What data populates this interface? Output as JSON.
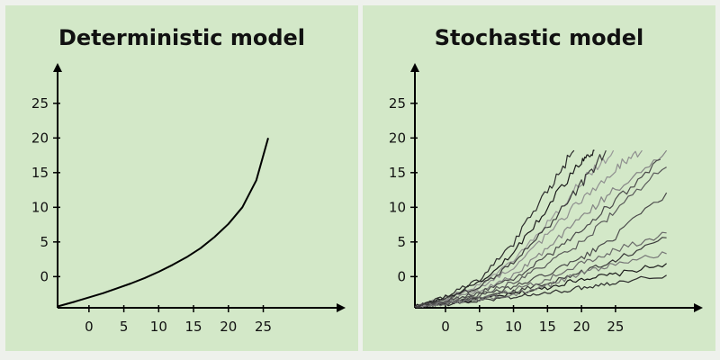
{
  "chart_data": [
    {
      "type": "line",
      "title": "Deterministic model",
      "xlabel": "",
      "ylabel": "",
      "x_ticks": [
        0,
        5,
        10,
        15,
        20,
        25
      ],
      "y_ticks": [
        0,
        5,
        10,
        15,
        20,
        25
      ],
      "xlim": [
        -4.5,
        35
      ],
      "ylim": [
        -4.5,
        29
      ],
      "grid": false,
      "series": [
        {
          "x": [
            -4.5,
            -2,
            0,
            2,
            4,
            6,
            8,
            10,
            12,
            14,
            16,
            18,
            20,
            22,
            24,
            25.7
          ],
          "y": [
            -4.3,
            -3.6,
            -3.0,
            -2.4,
            -1.7,
            -1.0,
            -0.2,
            0.7,
            1.7,
            2.8,
            4.1,
            5.7,
            7.6,
            10.0,
            13.9,
            20.0
          ]
        }
      ]
    },
    {
      "type": "line",
      "title": "Stochastic model",
      "xlabel": "",
      "ylabel": "",
      "x_ticks": [
        0,
        5,
        10,
        15,
        20,
        25
      ],
      "y_ticks": [
        0,
        5,
        10,
        15,
        20,
        25
      ],
      "xlim": [
        -4.5,
        36
      ],
      "ylim": [
        -4.5,
        29
      ],
      "grid": false,
      "series": [
        {
          "x": [
            -4.5,
            0,
            5,
            10,
            15,
            20,
            25,
            32.5
          ],
          "y": [
            -4.3,
            -3.9,
            -3.3,
            -2.5,
            -1.6,
            -0.3,
            0.3,
            1.9
          ]
        },
        {
          "x": [
            -4.5,
            0,
            5,
            10,
            15,
            20,
            25,
            32.5
          ],
          "y": [
            -4.3,
            -4.0,
            -3.5,
            -2.9,
            -2.4,
            -1.6,
            -0.8,
            0.2
          ]
        },
        {
          "x": [
            -4.5,
            0,
            5,
            10,
            15,
            20,
            25,
            32.5
          ],
          "y": [
            -4.3,
            -3.8,
            -3.2,
            -2.2,
            -0.9,
            0.6,
            2.5,
            5.6
          ]
        },
        {
          "x": [
            -4.5,
            0,
            5,
            10,
            15,
            20,
            25,
            32.5
          ],
          "y": [
            -4.3,
            -3.7,
            -2.8,
            -1.5,
            0.4,
            2.6,
            5.8,
            12.1
          ]
        },
        {
          "x": [
            -4.5,
            0,
            5,
            10,
            15,
            20,
            25,
            32.5
          ],
          "y": [
            -4.3,
            -3.6,
            -2.6,
            -0.8,
            1.8,
            4.9,
            9.6,
            15.8
          ]
        },
        {
          "x": [
            -4.5,
            0,
            5,
            10,
            15,
            20,
            25,
            32.5
          ],
          "y": [
            -4.3,
            -3.9,
            -3.1,
            -1.9,
            -0.4,
            1.9,
            3.8,
            6.3
          ]
        },
        {
          "x": [
            -4.5,
            0,
            5,
            10,
            15,
            20,
            25,
            32.5
          ],
          "y": [
            -4.3,
            -3.8,
            -3.3,
            -2.6,
            -1.3,
            0.5,
            1.8,
            3.3
          ]
        },
        {
          "x": [
            -4.5,
            0,
            5,
            10,
            15,
            20,
            25,
            32.5
          ],
          "y": [
            -4.3,
            -3.4,
            -2.1,
            0.2,
            4.0,
            8.5,
            12.6,
            18.2
          ]
        },
        {
          "x": [
            -4.5,
            0,
            5,
            10,
            15,
            20,
            25,
            28.9
          ],
          "y": [
            -4.3,
            -3.3,
            -1.6,
            1.4,
            6.0,
            11.2,
            15.6,
            18.2
          ]
        },
        {
          "x": [
            -4.5,
            0,
            5,
            10,
            15,
            20,
            24.7
          ],
          "y": [
            -4.3,
            -3.1,
            -1.2,
            2.5,
            7.8,
            13.6,
            18.2
          ]
        },
        {
          "x": [
            -4.5,
            0,
            5,
            10,
            15,
            20,
            21.9
          ],
          "y": [
            -4.3,
            -3.0,
            -0.8,
            3.5,
            9.9,
            17.0,
            18.2
          ]
        },
        {
          "x": [
            -4.5,
            0,
            5,
            10,
            15,
            18.9
          ],
          "y": [
            -4.3,
            -2.9,
            -0.4,
            4.8,
            12.4,
            18.2
          ]
        },
        {
          "x": [
            -4.5,
            0,
            5,
            10,
            15,
            20,
            23.6
          ],
          "y": [
            -4.3,
            -3.2,
            -1.4,
            1.9,
            7.1,
            13.3,
            18.2
          ]
        },
        {
          "x": [
            -4.5,
            0,
            5,
            10,
            15,
            20,
            25,
            31.6
          ],
          "y": [
            -4.3,
            -3.5,
            -2.3,
            -0.3,
            2.9,
            6.7,
            11.0,
            16.9
          ]
        }
      ]
    }
  ]
}
